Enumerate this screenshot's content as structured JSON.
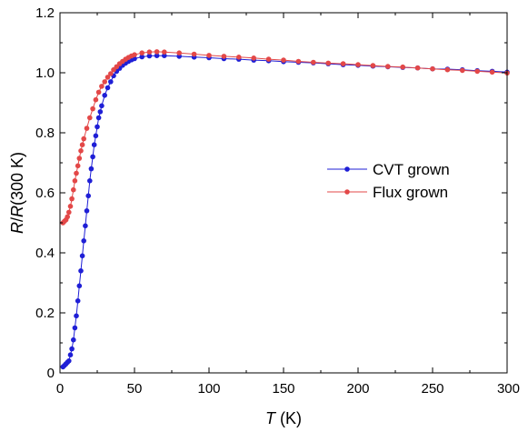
{
  "chart_data": {
    "type": "line",
    "title": "",
    "xlabel": {
      "var": "T",
      "unit": " (K)"
    },
    "ylabel": {
      "var1": "R",
      "mid": "/",
      "var2": "R",
      "tail": "(300 K)"
    },
    "xlim": [
      0,
      300
    ],
    "ylim": [
      0,
      1.2
    ],
    "xticks": [
      0,
      50,
      100,
      150,
      200,
      250,
      300
    ],
    "yticks": [
      0,
      0.2,
      0.4,
      0.6,
      0.8,
      1.0,
      1.2
    ],
    "ytick_labels": [
      "0",
      "0.2",
      "0.4",
      "0.6",
      "0.8",
      "1.0",
      "1.2"
    ],
    "grid": false,
    "legend_position": "center-right",
    "series": [
      {
        "name": "CVT grown",
        "color": "#1f1fd6",
        "x": [
          2,
          3,
          4,
          5,
          6,
          7,
          8,
          9,
          10,
          11,
          12,
          13,
          14,
          15,
          16,
          17,
          18,
          19,
          20,
          21,
          22,
          23,
          24,
          25,
          26,
          27,
          28,
          30,
          32,
          34,
          36,
          38,
          40,
          42,
          44,
          46,
          48,
          50,
          55,
          60,
          65,
          70,
          80,
          90,
          100,
          110,
          120,
          130,
          140,
          150,
          160,
          170,
          180,
          190,
          200,
          210,
          220,
          230,
          240,
          250,
          260,
          270,
          280,
          290,
          300
        ],
        "y": [
          0.02,
          0.025,
          0.03,
          0.035,
          0.04,
          0.06,
          0.08,
          0.11,
          0.15,
          0.19,
          0.24,
          0.29,
          0.34,
          0.39,
          0.44,
          0.49,
          0.54,
          0.59,
          0.64,
          0.68,
          0.72,
          0.76,
          0.79,
          0.82,
          0.85,
          0.87,
          0.89,
          0.925,
          0.95,
          0.97,
          0.99,
          1.005,
          1.015,
          1.025,
          1.032,
          1.038,
          1.043,
          1.047,
          1.053,
          1.056,
          1.057,
          1.057,
          1.055,
          1.052,
          1.05,
          1.047,
          1.045,
          1.042,
          1.04,
          1.037,
          1.035,
          1.033,
          1.03,
          1.027,
          1.025,
          1.022,
          1.02,
          1.018,
          1.016,
          1.013,
          1.012,
          1.01,
          1.007,
          1.005,
          1.002
        ]
      },
      {
        "name": "Flux grown",
        "color": "#e34848",
        "x": [
          2,
          3,
          4,
          5,
          6,
          7,
          8,
          9,
          10,
          11,
          12,
          13,
          14,
          15,
          16,
          18,
          20,
          22,
          24,
          26,
          28,
          30,
          32,
          34,
          36,
          38,
          40,
          42,
          44,
          46,
          48,
          50,
          55,
          60,
          65,
          70,
          80,
          90,
          100,
          110,
          120,
          130,
          140,
          150,
          160,
          170,
          180,
          190,
          200,
          210,
          220,
          230,
          240,
          250,
          260,
          270,
          280,
          290,
          300
        ],
        "y": [
          0.5,
          0.505,
          0.51,
          0.52,
          0.535,
          0.555,
          0.58,
          0.61,
          0.64,
          0.665,
          0.69,
          0.715,
          0.74,
          0.76,
          0.78,
          0.815,
          0.85,
          0.88,
          0.91,
          0.935,
          0.955,
          0.97,
          0.985,
          0.997,
          1.01,
          1.02,
          1.03,
          1.038,
          1.045,
          1.051,
          1.056,
          1.06,
          1.066,
          1.069,
          1.07,
          1.069,
          1.066,
          1.062,
          1.058,
          1.055,
          1.052,
          1.049,
          1.045,
          1.042,
          1.038,
          1.035,
          1.032,
          1.03,
          1.027,
          1.024,
          1.021,
          1.019,
          1.016,
          1.013,
          1.01,
          1.008,
          1.005,
          1.002,
          0.999
        ]
      }
    ]
  }
}
